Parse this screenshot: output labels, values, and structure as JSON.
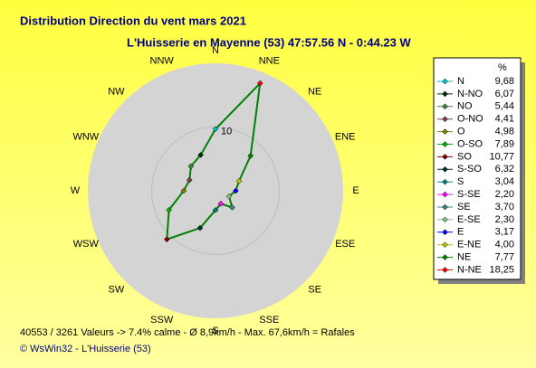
{
  "chart_data": {
    "type": "radar",
    "title": "Distribution Direction du vent   mars 2021",
    "subtitle": "L'Huisserie en Mayenne (53) 47:57.56 N - 0:44.23 W",
    "directions": [
      "N",
      "NNE",
      "NE",
      "ENE",
      "E",
      "ESE",
      "SE",
      "SSE",
      "S",
      "SSW",
      "SW",
      "WSW",
      "W",
      "WNW",
      "NW",
      "NNW"
    ],
    "categories": [
      "N",
      "N-NO",
      "NO",
      "O-NO",
      "O",
      "O-SO",
      "SO",
      "S-SO",
      "S",
      "S-SE",
      "SE",
      "E-SE",
      "E",
      "E-NE",
      "NE",
      "N-NE"
    ],
    "values": [
      9.68,
      6.07,
      5.44,
      4.41,
      4.98,
      7.89,
      10.77,
      6.32,
      3.04,
      2.2,
      3.7,
      2.3,
      3.17,
      4.0,
      7.77,
      18.25
    ],
    "value_labels": [
      "9,68",
      "6,07",
      "5,44",
      "4,41",
      "4,98",
      "7,89",
      "10,77",
      "6,32",
      "3,04",
      "2,20",
      "3,70",
      "2,30",
      "3,17",
      "4,00",
      "7,77",
      "18,25"
    ],
    "colors": [
      "#00c0c0",
      "#003000",
      "#408040",
      "#804040",
      "#808000",
      "#00b000",
      "#800000",
      "#003030",
      "#008080",
      "#ff00ff",
      "#408080",
      "#80c080",
      "#0000ff",
      "#c0c000",
      "#008000",
      "#ff0000"
    ],
    "line_color": "#008000",
    "rlim": [
      0,
      20
    ],
    "rticks": [
      10
    ],
    "legend_header": "%",
    "footer": "40553 / 3261 Valeurs  -> 7.4% calme   -   Ø 8,9km/h   -   Max. 67,6km/h = Rafales",
    "credit": "© WsWin32  -  L'Huisserie (53)"
  }
}
